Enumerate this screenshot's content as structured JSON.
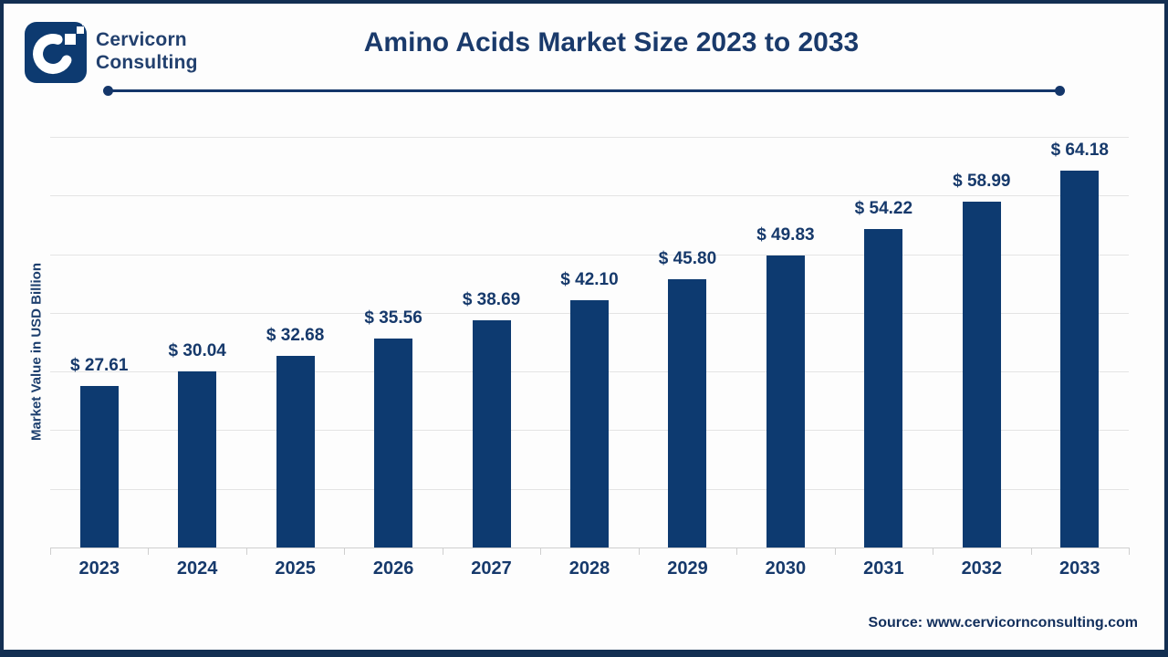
{
  "header": {
    "brand_line1": "Cervicorn",
    "brand_line2": "Consulting",
    "title": "Amino Acids Market Size 2023 to 2033"
  },
  "chart_data": {
    "type": "bar",
    "title": "Amino Acids Market Size 2023 to 2033",
    "categories": [
      "2023",
      "2024",
      "2025",
      "2026",
      "2027",
      "2028",
      "2029",
      "2030",
      "2031",
      "2032",
      "2033"
    ],
    "values": [
      27.61,
      30.04,
      32.68,
      35.56,
      38.69,
      42.1,
      45.8,
      49.83,
      54.22,
      58.99,
      64.18
    ],
    "value_prefix": "$ ",
    "xlabel": "",
    "ylabel": "Market Value in USD Billion",
    "ylim": [
      0,
      70
    ],
    "gridline_step": 10,
    "grid": true,
    "legend": false,
    "bar_color": "#0d3a70",
    "label_color": "#16396b"
  },
  "footer": {
    "source_label": "Source: www.cervicornconsulting.com"
  },
  "colors": {
    "accent_navy": "#14366a",
    "frame_navy": "#132f52",
    "grid_gray": "#e4e4e4",
    "axis_gray": "#cfcfcf"
  }
}
